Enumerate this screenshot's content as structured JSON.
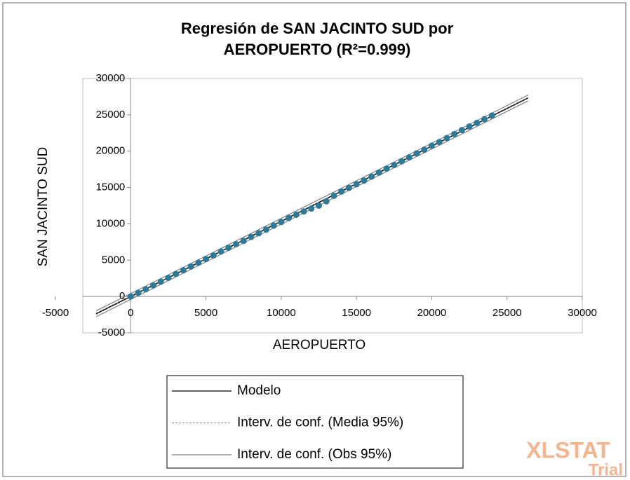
{
  "chart_data": {
    "type": "scatter",
    "title": [
      "Regresión de SAN JACINTO SUD por",
      "AEROPUERTO (R²=0.999)"
    ],
    "xlabel": "AEROPUERTO",
    "ylabel": "SAN JACINTO SUD",
    "xlim": [
      -5000,
      30000
    ],
    "ylim": [
      -5000,
      30000
    ],
    "xticks": [
      -5000,
      0,
      5000,
      10000,
      15000,
      20000,
      25000,
      30000
    ],
    "yticks": [
      -5000,
      0,
      5000,
      10000,
      15000,
      20000,
      25000,
      30000
    ],
    "grid": false,
    "legend": "bottom",
    "points": {
      "color": "#2b7a98",
      "x": [
        0,
        500,
        1000,
        1500,
        2000,
        2500,
        3000,
        3500,
        4000,
        4500,
        5000,
        5500,
        6000,
        6500,
        7000,
        7500,
        8000,
        8500,
        9000,
        9500,
        10000,
        10500,
        11000,
        11500,
        12000,
        12500,
        13000,
        13500,
        14000,
        14500,
        15000,
        15500,
        16000,
        16500,
        17000,
        17500,
        18000,
        18500,
        19000,
        19500,
        20000,
        20500,
        21000,
        21500,
        22000,
        22500,
        23000,
        23500,
        24000
      ],
      "values": [
        0,
        500,
        1000,
        1520,
        2050,
        2570,
        3100,
        3600,
        4130,
        4650,
        5150,
        5650,
        6200,
        6700,
        7200,
        7650,
        8200,
        8700,
        9200,
        9750,
        10250,
        10800,
        11250,
        11700,
        12100,
        12500,
        13100,
        13850,
        14450,
        14950,
        15450,
        15950,
        16500,
        17050,
        17600,
        18100,
        18600,
        19150,
        19700,
        20200,
        20750,
        21250,
        21800,
        22350,
        22900,
        23400,
        23900,
        24400,
        24900
      ]
    },
    "series": [
      {
        "name": "Modelo",
        "color": "#000000",
        "dash": false,
        "x": [
          -2300,
          26400
        ],
        "values": [
          -2380,
          27324
        ]
      },
      {
        "name": "Interv. de conf. (Media 95%)",
        "color": "#9a9a9a",
        "dash": true,
        "x": [
          -2300,
          26400,
          -2300,
          26400
        ],
        "values": [
          -2300,
          27400,
          -2460,
          27250
        ]
      },
      {
        "name": "Interv. de conf. (Obs 95%)",
        "color": "#808080",
        "dash": false,
        "x": [
          -2300,
          26400,
          -2300,
          26400
        ],
        "values": [
          -1980,
          27724,
          -2780,
          26924
        ]
      }
    ],
    "watermark": {
      "brand": "XLSTAT",
      "note": "Trial"
    }
  }
}
